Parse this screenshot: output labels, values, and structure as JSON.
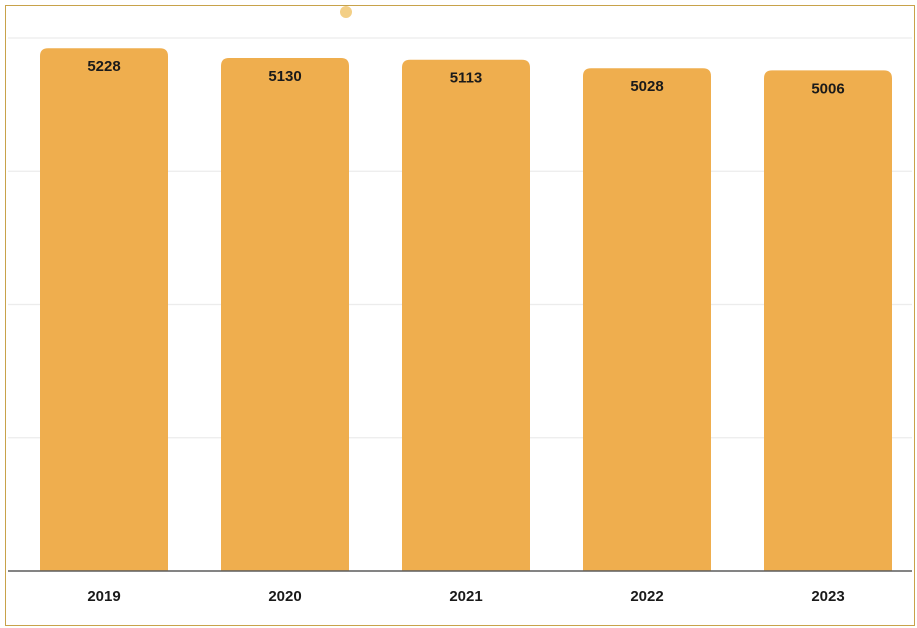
{
  "chart_data": {
    "type": "bar",
    "categories": [
      "2019",
      "2020",
      "2021",
      "2022",
      "2023"
    ],
    "values": [
      5228,
      5130,
      5113,
      5028,
      5006
    ],
    "title": "",
    "xlabel": "",
    "ylabel": "",
    "ylim": [
      0,
      5330
    ],
    "grid": true,
    "legend": "top-center",
    "legend_entries": [
      ""
    ],
    "data_labels": true,
    "colors": {
      "bar": "#efae4e",
      "axis": "#5c5c5c",
      "grid": "#ececec",
      "frame": "#c8a24a",
      "label": "#1a1a1a"
    }
  }
}
